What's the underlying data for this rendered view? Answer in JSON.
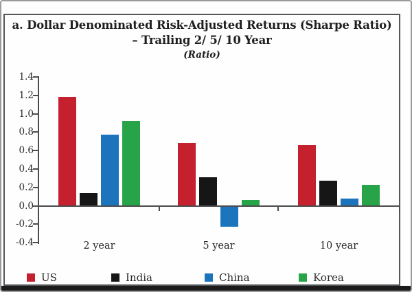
{
  "chart_data": {
    "type": "bar",
    "title_line1": "a. Dollar Denominated Risk-Adjusted Returns (Sharpe Ratio)",
    "title_line2": "– Trailing 2/ 5/ 10 Year",
    "unit_label": "(Ratio)",
    "categories": [
      "2 year",
      "5 year",
      "10 year"
    ],
    "series": [
      {
        "name": "US",
        "color": "#c4202e",
        "values": [
          1.18,
          0.68,
          0.66
        ]
      },
      {
        "name": "India",
        "color": "#161616",
        "values": [
          0.14,
          0.31,
          0.27
        ]
      },
      {
        "name": "China",
        "color": "#1c75bc",
        "values": [
          0.77,
          -0.22,
          0.08
        ]
      },
      {
        "name": "Korea",
        "color": "#27a348",
        "values": [
          0.92,
          0.06,
          0.23
        ]
      }
    ],
    "ylim": [
      -0.4,
      1.4
    ],
    "ytick_step": 0.2,
    "ytick_labels": [
      "1.4",
      "1.2",
      "1.0",
      "0.8",
      "0.6",
      "0.4",
      "0.2",
      "0.0",
      "-0.2",
      "-0.4"
    ],
    "grid": false,
    "legend_position": "bottom",
    "axis_color": "#4b4b4e",
    "frame_color": "#55565a"
  }
}
